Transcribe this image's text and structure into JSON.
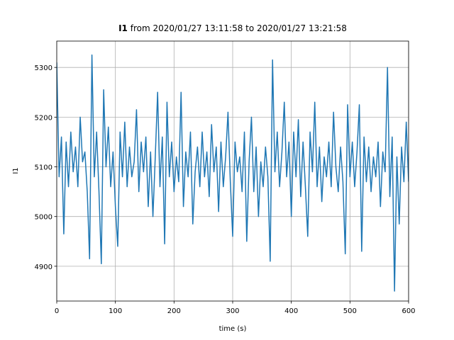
{
  "chart_data": {
    "type": "line",
    "title": {
      "bold": "I1",
      "text": "from 2020/01/27 13:11:58 to 2020/01/27 13:21:58"
    },
    "xlabel": "time (s)",
    "ylabel": "I1",
    "color": "#1f77b4",
    "grid": true,
    "xlim": [
      0,
      600
    ],
    "xticks": [
      0,
      100,
      200,
      300,
      400,
      500,
      600
    ],
    "ylim": [
      4830,
      5353
    ],
    "yticks": [
      4900,
      5000,
      5100,
      5200,
      5300
    ],
    "x": [
      0,
      4,
      8,
      12,
      16,
      20,
      24,
      28,
      32,
      36,
      40,
      44,
      48,
      52,
      56,
      60,
      64,
      68,
      72,
      76,
      80,
      84,
      88,
      92,
      96,
      100,
      104,
      108,
      112,
      116,
      120,
      124,
      128,
      132,
      136,
      140,
      144,
      148,
      152,
      156,
      160,
      164,
      168,
      172,
      176,
      180,
      184,
      188,
      192,
      196,
      200,
      204,
      208,
      212,
      216,
      220,
      224,
      228,
      232,
      236,
      240,
      244,
      248,
      252,
      256,
      260,
      264,
      268,
      272,
      276,
      280,
      284,
      288,
      292,
      296,
      300,
      304,
      308,
      312,
      316,
      320,
      324,
      328,
      332,
      336,
      340,
      344,
      348,
      352,
      356,
      360,
      364,
      368,
      372,
      376,
      380,
      384,
      388,
      392,
      396,
      400,
      404,
      408,
      412,
      416,
      420,
      424,
      428,
      432,
      436,
      440,
      444,
      448,
      452,
      456,
      460,
      464,
      468,
      472,
      476,
      480,
      484,
      488,
      492,
      496,
      500,
      504,
      508,
      512,
      516,
      520,
      524,
      528,
      532,
      536,
      540,
      544,
      548,
      552,
      556,
      560,
      564,
      568,
      572,
      576,
      580,
      584,
      588,
      592,
      596,
      600
    ],
    "values": [
      5310,
      5080,
      5160,
      4965,
      5150,
      5060,
      5170,
      5090,
      5140,
      5060,
      5200,
      5110,
      5130,
      5050,
      4915,
      5325,
      5080,
      5170,
      5050,
      4905,
      5255,
      5100,
      5180,
      5060,
      5130,
      5020,
      4940,
      5170,
      5080,
      5190,
      5060,
      5140,
      5080,
      5110,
      5215,
      5050,
      5150,
      5090,
      5160,
      5020,
      5130,
      5000,
      5120,
      5250,
      5060,
      5160,
      4945,
      5230,
      5080,
      5150,
      5050,
      5120,
      5070,
      5250,
      5020,
      5130,
      5080,
      5170,
      4985,
      5090,
      5140,
      5060,
      5170,
      5080,
      5130,
      5040,
      5185,
      5090,
      5140,
      5010,
      5150,
      5060,
      5120,
      5210,
      5070,
      4960,
      5150,
      5090,
      5120,
      5050,
      5170,
      4950,
      5110,
      5200,
      5050,
      5140,
      5000,
      5110,
      5060,
      5140,
      5080,
      4910,
      5315,
      5090,
      5170,
      5060,
      5130,
      5230,
      5080,
      5150,
      5000,
      5170,
      5080,
      5195,
      5040,
      5150,
      5060,
      4960,
      5170,
      5090,
      5230,
      5060,
      5140,
      5030,
      5120,
      5080,
      5150,
      5060,
      5210,
      5100,
      5050,
      5140,
      5070,
      4925,
      5225,
      5080,
      5150,
      5060,
      5130,
      5225,
      4930,
      5160,
      5070,
      5140,
      5050,
      5120,
      5080,
      5150,
      5020,
      5130,
      5090,
      5300,
      5040,
      5160,
      4850,
      5120,
      4985,
      5140,
      5070,
      5190,
      5070
    ]
  }
}
